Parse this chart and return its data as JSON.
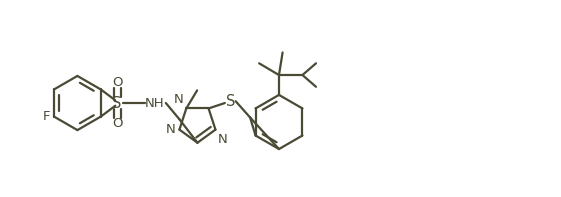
{
  "bg_color": "#ffffff",
  "line_color": "#4a4a35",
  "line_width": 1.6,
  "font_size": 9.5,
  "figsize": [
    5.61,
    1.97
  ],
  "dpi": 100,
  "xlim": [
    -1.4,
    4.8
  ],
  "ylim": [
    -1.0,
    1.1
  ]
}
